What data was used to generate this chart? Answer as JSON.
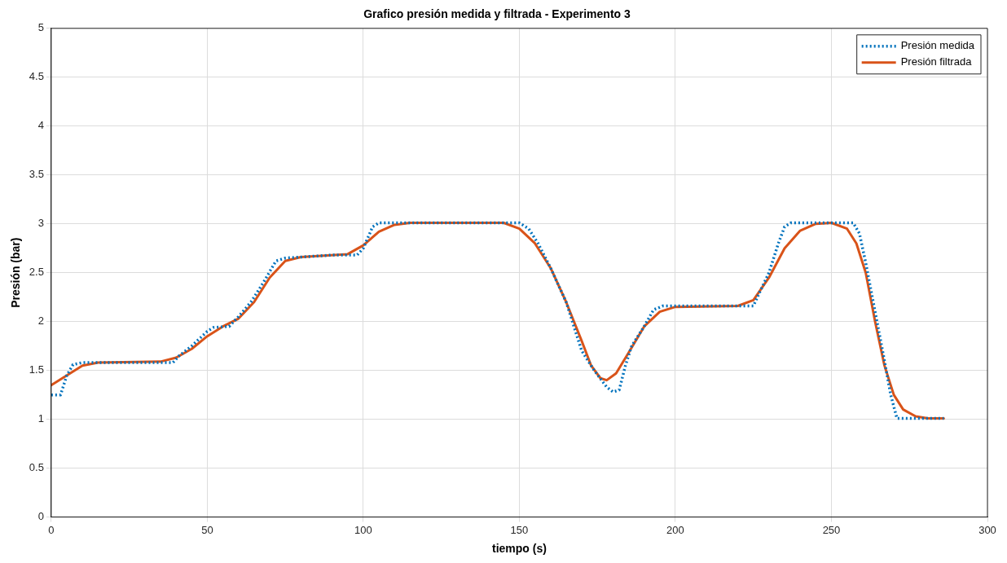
{
  "chart_data": {
    "type": "line",
    "title": "Grafico presión medida y filtrada - Experimento 3",
    "xlabel": "tiempo (s)",
    "ylabel": "Presión (bar)",
    "xlim": [
      0,
      300
    ],
    "xticks": [
      0,
      50,
      100,
      150,
      200,
      250,
      300
    ],
    "ylim": [
      0,
      5
    ],
    "yticks": [
      0,
      0.5,
      1,
      1.5,
      2,
      2.5,
      3,
      3.5,
      4,
      4.5,
      5
    ],
    "grid": true,
    "legend": "top right",
    "marker": "none",
    "series": [
      {
        "name": "Presión medida",
        "color": "#0072bd",
        "line_style": "dotted",
        "x": [
          0,
          3,
          5,
          7,
          10,
          39,
          41,
          45,
          50,
          52,
          57,
          60,
          64,
          68,
          72,
          75,
          90,
          98,
          100,
          103,
          105,
          150,
          153,
          156,
          160,
          165,
          168,
          170,
          174,
          178,
          180,
          182,
          184,
          186,
          190,
          193,
          196,
          225,
          227,
          230,
          233,
          235,
          237,
          257,
          259,
          261,
          264,
          267,
          269,
          271,
          280,
          286
        ],
        "values": [
          1.25,
          1.25,
          1.45,
          1.56,
          1.58,
          1.58,
          1.65,
          1.75,
          1.9,
          1.94,
          1.95,
          2.05,
          2.2,
          2.4,
          2.62,
          2.65,
          2.68,
          2.68,
          2.75,
          2.97,
          3.01,
          3.01,
          2.95,
          2.8,
          2.55,
          2.2,
          1.9,
          1.7,
          1.5,
          1.33,
          1.28,
          1.3,
          1.55,
          1.75,
          1.95,
          2.12,
          2.16,
          2.16,
          2.3,
          2.5,
          2.8,
          2.97,
          3.01,
          3.01,
          2.9,
          2.6,
          2.1,
          1.6,
          1.25,
          1.01,
          1.01,
          1.01
        ]
      },
      {
        "name": "Presión filtrada",
        "color": "#d95319",
        "line_style": "solid",
        "x": [
          0,
          5,
          10,
          15,
          35,
          40,
          45,
          50,
          55,
          60,
          65,
          70,
          75,
          80,
          95,
          100,
          105,
          110,
          115,
          145,
          150,
          155,
          160,
          165,
          170,
          173,
          176,
          178,
          181,
          185,
          190,
          195,
          200,
          220,
          225,
          230,
          235,
          240,
          245,
          250,
          255,
          258,
          261,
          264,
          267,
          270,
          273,
          277,
          281,
          286
        ],
        "values": [
          1.35,
          1.45,
          1.55,
          1.58,
          1.59,
          1.63,
          1.72,
          1.85,
          1.95,
          2.03,
          2.2,
          2.45,
          2.62,
          2.66,
          2.69,
          2.78,
          2.92,
          2.99,
          3.01,
          3.01,
          2.95,
          2.8,
          2.55,
          2.2,
          1.8,
          1.55,
          1.42,
          1.4,
          1.47,
          1.68,
          1.95,
          2.1,
          2.15,
          2.16,
          2.22,
          2.45,
          2.75,
          2.93,
          3.0,
          3.01,
          2.95,
          2.8,
          2.5,
          2.0,
          1.55,
          1.25,
          1.1,
          1.03,
          1.01,
          1.01
        ]
      }
    ]
  }
}
